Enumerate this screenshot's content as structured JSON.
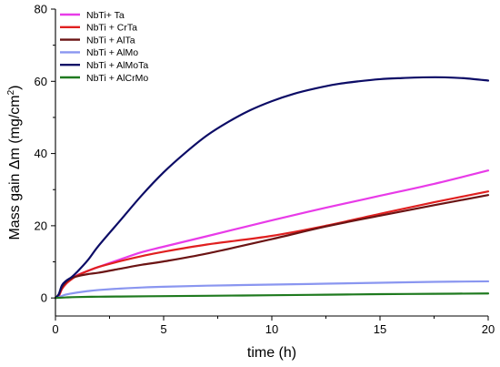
{
  "chart_data": {
    "type": "line",
    "title": "",
    "xlabel": "time (h)",
    "ylabel_prefix": "Mass gain Δm (mg/cm",
    "ylabel_sup": "2",
    "ylabel_suffix": ")",
    "xlim": [
      0,
      20
    ],
    "ylim": [
      -5,
      80
    ],
    "x_ticks": [
      0,
      5,
      10,
      15,
      20
    ],
    "y_ticks": [
      0,
      20,
      40,
      60,
      80
    ],
    "x_tick_labels": [
      "0",
      "5",
      "10",
      "15",
      "20"
    ],
    "y_tick_labels": [
      "0",
      "20",
      "40",
      "60",
      "80"
    ],
    "grid": false,
    "legend_position": "top-left",
    "series": [
      {
        "name": "NbTi+ Ta",
        "color": "#e83be8",
        "x": [
          0,
          0.15,
          0.3,
          0.5,
          0.75,
          1,
          1.5,
          2,
          3,
          4,
          5,
          7,
          10,
          12.5,
          15,
          17.5,
          20
        ],
        "y": [
          0,
          0.5,
          2.5,
          4.0,
          5.3,
          6.3,
          7.5,
          8.6,
          10.7,
          12.7,
          14.2,
          17.1,
          21.5,
          25.0,
          28.3,
          31.6,
          35.3
        ]
      },
      {
        "name": "NbTi + CrTa",
        "color": "#e02020",
        "x": [
          0,
          0.15,
          0.3,
          0.5,
          0.75,
          1,
          1.5,
          2,
          3,
          4,
          5,
          7,
          10,
          12.5,
          15,
          17.5,
          20
        ],
        "y": [
          0,
          0.5,
          2.5,
          4.0,
          5.2,
          6.2,
          7.5,
          8.6,
          10.2,
          11.6,
          12.8,
          14.8,
          17.2,
          20.0,
          23.3,
          26.5,
          29.5
        ]
      },
      {
        "name": "NbTi + AlTa",
        "color": "#6b1414",
        "x": [
          0,
          0.15,
          0.3,
          0.5,
          0.75,
          1,
          1.5,
          2,
          3,
          4,
          5,
          7,
          10,
          12.5,
          15,
          17.5,
          20
        ],
        "y": [
          0,
          1.0,
          3.0,
          4.5,
          5.5,
          6.0,
          6.6,
          7.0,
          8.1,
          9.2,
          10.1,
          12.3,
          16.3,
          19.8,
          22.8,
          25.7,
          28.5
        ]
      },
      {
        "name": "NbTi + AlMo",
        "color": "#8a96f0",
        "x": [
          0,
          0.2,
          0.4,
          0.7,
          1,
          1.5,
          2,
          3,
          4,
          5,
          7,
          10,
          12.5,
          15,
          17.5,
          20
        ],
        "y": [
          0,
          0.3,
          0.8,
          1.2,
          1.5,
          1.9,
          2.2,
          2.6,
          2.9,
          3.1,
          3.4,
          3.7,
          3.95,
          4.2,
          4.45,
          4.6
        ]
      },
      {
        "name": "NbTi + AlMoTa",
        "color": "#0c0c66",
        "x": [
          0,
          0.15,
          0.3,
          0.5,
          0.75,
          1,
          1.5,
          2,
          3,
          4,
          5,
          6,
          7,
          8,
          9,
          10,
          11,
          12,
          13,
          14,
          15,
          16,
          17,
          18,
          19,
          20
        ],
        "y": [
          0,
          1.0,
          3.5,
          4.8,
          5.8,
          7.2,
          10.5,
          14.5,
          21.5,
          28.5,
          34.8,
          40.2,
          45.0,
          48.8,
          52.0,
          54.5,
          56.5,
          58.0,
          59.2,
          60.0,
          60.6,
          60.9,
          61.1,
          61.1,
          60.8,
          60.2
        ]
      },
      {
        "name": "NbTi + AlCrMo",
        "color": "#1f7a1f",
        "x": [
          0,
          0.5,
          1,
          2,
          3,
          5,
          7,
          10,
          12.5,
          15,
          17.5,
          20
        ],
        "y": [
          0,
          0.15,
          0.25,
          0.35,
          0.4,
          0.5,
          0.6,
          0.75,
          0.9,
          1.05,
          1.15,
          1.25
        ]
      }
    ]
  }
}
